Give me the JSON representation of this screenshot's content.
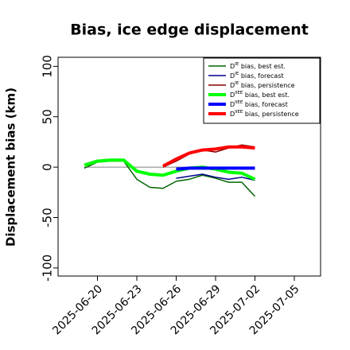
{
  "chart_data": {
    "type": "line",
    "title": "Bias, ice edge displacement",
    "y_label": "Displacement bias (km)",
    "x": [
      "2025-06-19",
      "2025-06-20",
      "2025-06-21",
      "2025-06-22",
      "2025-06-23",
      "2025-06-24",
      "2025-06-25",
      "2025-06-26",
      "2025-06-27",
      "2025-06-28",
      "2025-06-29",
      "2025-06-30",
      "2025-07-01",
      "2025-07-02"
    ],
    "xlim": [
      "2025-06-17",
      "2025-07-07"
    ],
    "xticks": [
      "2025-06-20",
      "2025-06-23",
      "2025-06-26",
      "2025-06-29",
      "2025-07-02",
      "2025-07-05"
    ],
    "xtick_highlight": "2025-06-26",
    "xtick_highlight_color": "#228b22",
    "ylim": [
      -108,
      109
    ],
    "yticks": [
      -100,
      -50,
      0,
      50,
      100
    ],
    "hline": 0,
    "hline_color": "#808080",
    "legend": "upper right",
    "series": [
      {
        "name": [
          "D",
          "IE",
          " bias, best est."
        ],
        "color": "#006400",
        "width": 1.5,
        "values": [
          -1,
          5,
          6,
          6,
          -12,
          -20,
          -21,
          -14,
          -12,
          -8,
          -11,
          -15,
          -15,
          -29
        ]
      },
      {
        "name": [
          "D",
          "IE",
          " bias, forecast"
        ],
        "color": "#00008b",
        "width": 1.5,
        "values": [
          null,
          null,
          null,
          null,
          null,
          null,
          null,
          -11,
          -9,
          -7,
          -10,
          -12,
          -10,
          -13
        ]
      },
      {
        "name": [
          "D",
          "IE",
          " bias, persistence"
        ],
        "color": "#8b0000",
        "width": 1.5,
        "values": [
          null,
          null,
          null,
          null,
          null,
          null,
          0,
          6,
          13,
          17,
          15,
          19,
          22,
          20
        ]
      },
      {
        "name": [
          "D",
          "IIEE",
          " bias, best est."
        ],
        "color": "#00ff00",
        "width": 4,
        "values": [
          2,
          6,
          7,
          7,
          -4,
          -7,
          -8,
          -4,
          -1,
          0,
          -2,
          -5,
          -6,
          -12
        ]
      },
      {
        "name": [
          "D",
          "IIEE",
          " bias, forecast"
        ],
        "color": "#0000ff",
        "width": 4,
        "values": [
          null,
          null,
          null,
          null,
          null,
          null,
          null,
          -2,
          -1,
          -1,
          -1,
          -1,
          -1,
          -1
        ]
      },
      {
        "name": [
          "D",
          "IIEE",
          " bias, persistence"
        ],
        "color": "#ff0000",
        "width": 4,
        "values": [
          null,
          null,
          null,
          null,
          null,
          null,
          1,
          8,
          14,
          17,
          18,
          20,
          20,
          19
        ]
      }
    ]
  }
}
